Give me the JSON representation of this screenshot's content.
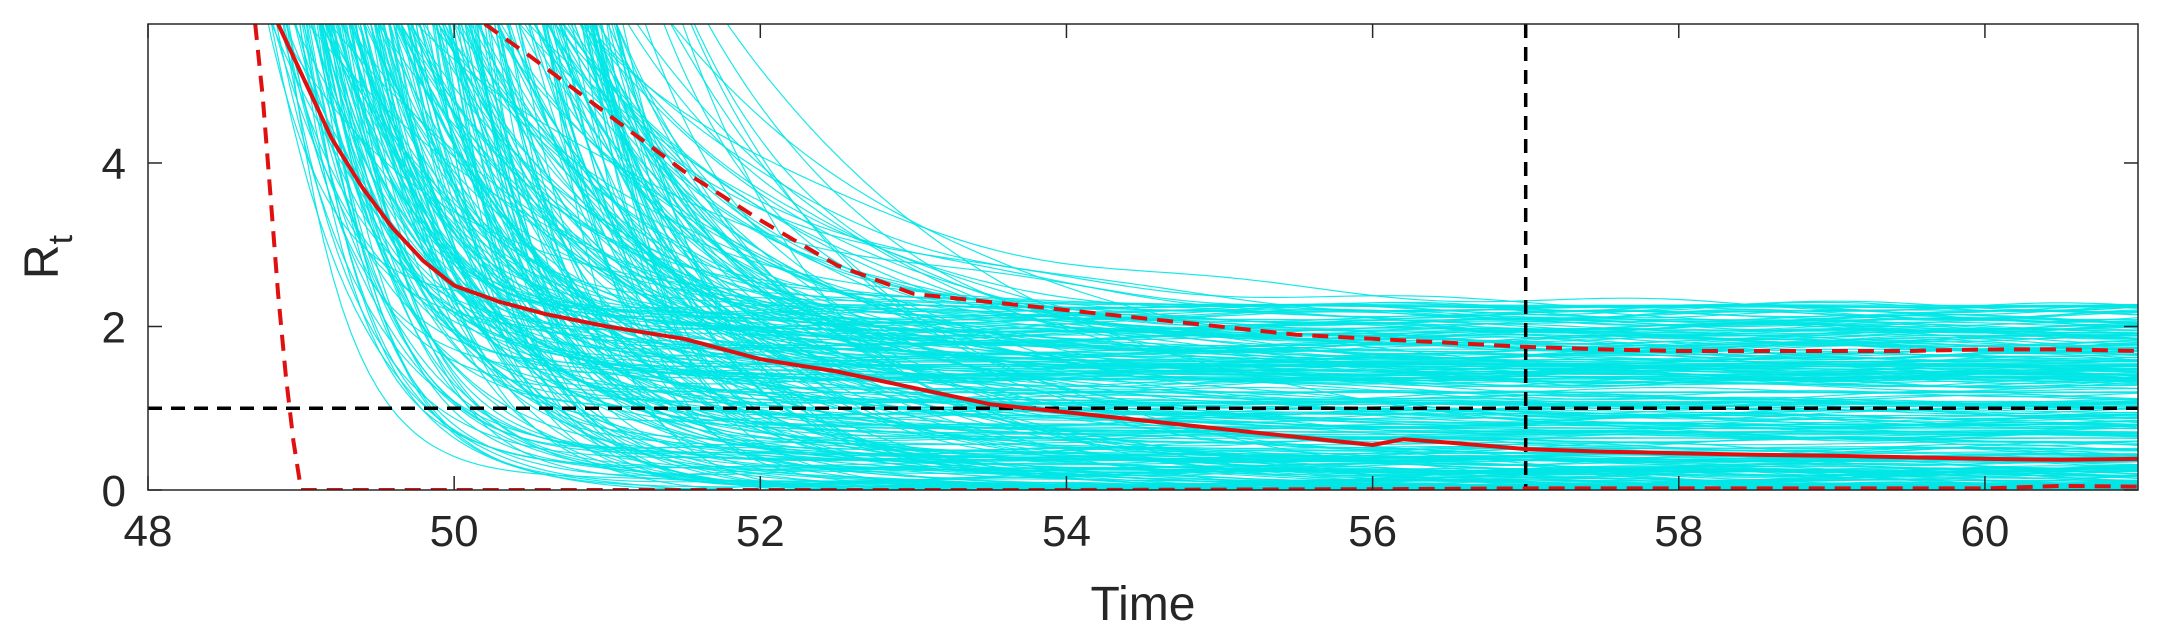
{
  "chart_data": {
    "type": "line",
    "title": "",
    "xlabel": "Time",
    "ylabel_main": "R",
    "ylabel_sub": "t",
    "xlim": [
      48,
      61
    ],
    "ylim": [
      0,
      5.7
    ],
    "xticks": [
      48,
      50,
      52,
      54,
      56,
      58,
      60
    ],
    "yticks": [
      0,
      2,
      4
    ],
    "grid": false,
    "legend": "none",
    "colors": {
      "ensemble": "#00e5e5",
      "median": "#e01010",
      "bounds": "#e01010",
      "reference": "#000000",
      "axis": "#262626"
    },
    "reference_lines": {
      "horizontal_y": 1,
      "vertical_x": 57
    },
    "ensemble": {
      "description_count": 300,
      "note": "Many cyan sample trajectories decaying from large values near t=49–50 toward plateaus between about 0 and 2.3"
    },
    "series": [
      {
        "role": "median",
        "style": "solid",
        "x": [
          48.85,
          49.0,
          49.2,
          49.4,
          49.6,
          49.8,
          50.0,
          50.3,
          50.6,
          51.0,
          51.5,
          52.0,
          52.5,
          53.0,
          53.5,
          54.0,
          54.5,
          55.0,
          55.5,
          56.0,
          56.2,
          56.5,
          57.0,
          57.5,
          58.0,
          58.5,
          59.0,
          59.5,
          60.0,
          60.5,
          61.0
        ],
        "y": [
          5.7,
          5.1,
          4.3,
          3.7,
          3.2,
          2.8,
          2.5,
          2.3,
          2.15,
          2.0,
          1.85,
          1.6,
          1.45,
          1.25,
          1.05,
          0.95,
          0.85,
          0.75,
          0.65,
          0.55,
          0.62,
          0.58,
          0.5,
          0.47,
          0.45,
          0.43,
          0.42,
          0.4,
          0.38,
          0.37,
          0.38
        ]
      },
      {
        "role": "upper-bound",
        "style": "dashed",
        "x": [
          50.2,
          50.5,
          51.0,
          51.5,
          52.0,
          52.5,
          53.0,
          53.5,
          54.0,
          54.5,
          55.0,
          55.5,
          56.0,
          56.5,
          57.0,
          57.5,
          58.0,
          58.5,
          59.0,
          59.5,
          60.0,
          60.5,
          61.0
        ],
        "y": [
          5.7,
          5.3,
          4.6,
          3.9,
          3.3,
          2.75,
          2.4,
          2.3,
          2.2,
          2.1,
          2.0,
          1.9,
          1.85,
          1.8,
          1.75,
          1.72,
          1.7,
          1.7,
          1.7,
          1.7,
          1.72,
          1.72,
          1.7
        ]
      },
      {
        "role": "lower-bound",
        "style": "dashed",
        "x": [
          48.7,
          48.75,
          48.8,
          48.85,
          48.9,
          48.95,
          49.0,
          49.2,
          50.0,
          52.0,
          54.0,
          56.0,
          57.0,
          58.0,
          59.0,
          60.0,
          60.5,
          61.0
        ],
        "y": [
          5.7,
          4.8,
          3.6,
          2.4,
          1.4,
          0.6,
          0.0,
          0.0,
          0.0,
          0.0,
          0.0,
          0.01,
          0.02,
          0.02,
          0.02,
          0.02,
          0.05,
          0.04
        ]
      }
    ]
  }
}
